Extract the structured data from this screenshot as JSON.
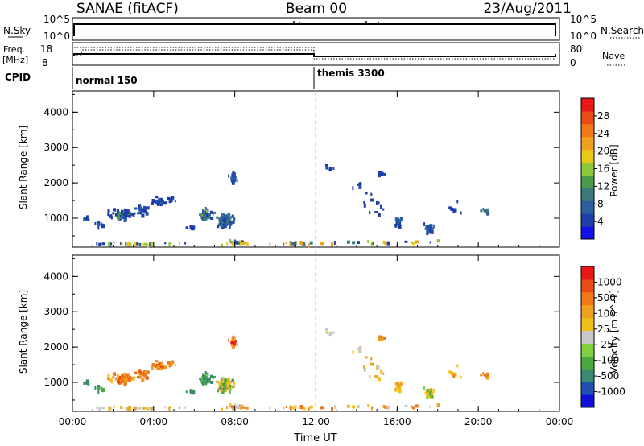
{
  "header": {
    "station": "SANAE (fitACF)",
    "beam": "Beam 00",
    "date": "23/Aug/2011"
  },
  "noise_panel": {
    "left_label": "N.Sky",
    "left_ticks": [
      "10^5",
      "10^0"
    ],
    "right_ticks": [
      "10^5",
      "10^0"
    ],
    "right_label": "N.Search"
  },
  "freq_panel": {
    "left_label_1": "Freq.",
    "left_label_2": "[MHz]",
    "left_ticks": [
      "18",
      "8"
    ],
    "right_ticks": [
      "80",
      "0"
    ],
    "right_label": "Nave"
  },
  "cpid_panel": {
    "label": "CPID",
    "segments": [
      {
        "name": "normal 150",
        "start_hour": 0,
        "end_hour": 12
      },
      {
        "name": "themis 3300",
        "start_hour": 12,
        "end_hour": 24
      }
    ]
  },
  "x_axis": {
    "ticks": [
      "00:00",
      "04:00",
      "08:00",
      "12:00",
      "16:00",
      "20:00",
      "00:00"
    ],
    "label": "Time UT"
  },
  "chart_data": [
    {
      "type": "heatmap",
      "name": "power",
      "ylabel": "Slant Range [km]",
      "xlim_hours": [
        0,
        24
      ],
      "ylim_km": [
        180,
        4600
      ],
      "yticks": [
        "4000",
        "3000",
        "2000",
        "1000"
      ],
      "ytick_values": [
        4000,
        3000,
        2000,
        1000
      ],
      "colorbar": {
        "label": "Power [dB]",
        "range": [
          0,
          32
        ],
        "ticks": [
          "28",
          "24",
          "20",
          "16",
          "12",
          "8",
          "4"
        ],
        "tick_values": [
          28,
          24,
          20,
          16,
          12,
          8,
          4
        ],
        "colors": [
          "#1010e8",
          "#1e3fa8",
          "#2a5fa0",
          "#3a7a78",
          "#4a9a4a",
          "#8cc83a",
          "#e8c818",
          "#f0a020",
          "#f07818",
          "#e84a18",
          "#e81818"
        ]
      },
      "clusters": [
        {
          "t": 0.7,
          "r": 950,
          "dt": 0.25,
          "dr": 120,
          "n": 6,
          "cls": [
            1,
            1,
            2
          ]
        },
        {
          "t": 1.3,
          "r": 820,
          "dt": 0.35,
          "dr": 120,
          "n": 8,
          "cls": [
            1,
            1,
            2
          ]
        },
        {
          "t": 2.4,
          "r": 1100,
          "dt": 0.8,
          "dr": 220,
          "n": 60,
          "cls": [
            1,
            1,
            1,
            2,
            4
          ]
        },
        {
          "t": 3.4,
          "r": 1200,
          "dt": 0.5,
          "dr": 220,
          "n": 25,
          "cls": [
            1,
            1,
            2
          ]
        },
        {
          "t": 4.2,
          "r": 1450,
          "dt": 0.5,
          "dr": 150,
          "n": 30,
          "cls": [
            1,
            1,
            2
          ]
        },
        {
          "t": 4.8,
          "r": 1500,
          "dt": 0.3,
          "dr": 100,
          "n": 8,
          "cls": [
            1,
            1
          ]
        },
        {
          "t": 5.8,
          "r": 700,
          "dt": 0.35,
          "dr": 120,
          "n": 8,
          "cls": [
            1,
            1
          ]
        },
        {
          "t": 6.5,
          "r": 1100,
          "dt": 0.45,
          "dr": 250,
          "n": 40,
          "cls": [
            1,
            2,
            3,
            4,
            5
          ]
        },
        {
          "t": 7.5,
          "r": 900,
          "dt": 0.55,
          "dr": 330,
          "n": 70,
          "cls": [
            1,
            1,
            2,
            3
          ]
        },
        {
          "t": 7.9,
          "r": 2100,
          "dt": 0.3,
          "dr": 200,
          "n": 15,
          "cls": [
            1,
            1,
            2
          ]
        },
        {
          "t": 8.0,
          "r": 280,
          "dt": 0.7,
          "dr": 80,
          "n": 12,
          "cls": [
            1,
            3,
            4,
            5,
            6
          ]
        },
        {
          "t": 12.5,
          "r": 2400,
          "dt": 0.5,
          "dr": 150,
          "n": 5,
          "cls": [
            1,
            1
          ]
        },
        {
          "t": 14.0,
          "r": 1900,
          "dt": 0.5,
          "dr": 300,
          "n": 6,
          "cls": [
            1,
            1
          ]
        },
        {
          "t": 15.2,
          "r": 2250,
          "dt": 0.3,
          "dr": 100,
          "n": 14,
          "cls": [
            1,
            1
          ]
        },
        {
          "t": 14.8,
          "r": 1400,
          "dt": 0.8,
          "dr": 450,
          "n": 12,
          "cls": [
            1,
            1
          ]
        },
        {
          "t": 16.0,
          "r": 850,
          "dt": 0.5,
          "dr": 300,
          "n": 12,
          "cls": [
            1,
            1,
            2
          ]
        },
        {
          "t": 17.5,
          "r": 720,
          "dt": 0.35,
          "dr": 220,
          "n": 30,
          "cls": [
            1,
            1,
            2
          ]
        },
        {
          "t": 18.8,
          "r": 1200,
          "dt": 0.6,
          "dr": 300,
          "n": 8,
          "cls": [
            1,
            1
          ]
        },
        {
          "t": 20.3,
          "r": 1150,
          "dt": 0.35,
          "dr": 120,
          "n": 8,
          "cls": [
            1,
            2,
            3
          ]
        },
        {
          "t": 12.0,
          "r": 280,
          "dt": 11.5,
          "dr": 80,
          "n": 40,
          "cls": [
            1,
            3,
            5,
            6,
            7
          ]
        },
        {
          "t": 3.0,
          "r": 250,
          "dt": 2.8,
          "dr": 50,
          "n": 30,
          "cls": [
            1,
            2,
            5,
            6
          ]
        }
      ]
    },
    {
      "type": "heatmap",
      "name": "velocity",
      "ylabel": "Slant Range [km]",
      "xlim_hours": [
        0,
        24
      ],
      "ylim_km": [
        180,
        4600
      ],
      "yticks": [
        "4000",
        "3000",
        "2000",
        "1000"
      ],
      "ytick_values": [
        4000,
        3000,
        2000,
        1000
      ],
      "colorbar": {
        "label": "Velocity [m s^-1]",
        "ticks": [
          "1000",
          "500",
          "100",
          "25",
          "-25",
          "-100",
          "-500",
          "-1000"
        ],
        "colors": [
          "#1010d8",
          "#2050b0",
          "#3a8a70",
          "#4aaa40",
          "#80d040",
          "#c8c8c8",
          "#f0c018",
          "#f0a020",
          "#f07818",
          "#e84a18",
          "#e81818"
        ]
      },
      "clusters": [
        {
          "t": 0.7,
          "r": 950,
          "dt": 0.25,
          "dr": 120,
          "n": 6,
          "cls": [
            2,
            3
          ]
        },
        {
          "t": 1.3,
          "r": 820,
          "dt": 0.35,
          "dr": 120,
          "n": 8,
          "cls": [
            2,
            3
          ]
        },
        {
          "t": 2.4,
          "r": 1100,
          "dt": 0.8,
          "dr": 220,
          "n": 60,
          "cls": [
            6,
            7,
            8,
            8,
            9
          ]
        },
        {
          "t": 3.4,
          "r": 1200,
          "dt": 0.5,
          "dr": 220,
          "n": 25,
          "cls": [
            7,
            8,
            8,
            9
          ]
        },
        {
          "t": 4.2,
          "r": 1450,
          "dt": 0.5,
          "dr": 150,
          "n": 30,
          "cls": [
            7,
            8,
            8,
            9
          ]
        },
        {
          "t": 4.8,
          "r": 1500,
          "dt": 0.3,
          "dr": 100,
          "n": 8,
          "cls": [
            7,
            8
          ]
        },
        {
          "t": 5.8,
          "r": 700,
          "dt": 0.35,
          "dr": 120,
          "n": 8,
          "cls": [
            2,
            3
          ]
        },
        {
          "t": 6.5,
          "r": 1100,
          "dt": 0.45,
          "dr": 250,
          "n": 40,
          "cls": [
            2,
            2,
            3,
            4
          ]
        },
        {
          "t": 7.5,
          "r": 900,
          "dt": 0.55,
          "dr": 330,
          "n": 70,
          "cls": [
            2,
            3,
            3,
            6,
            7
          ]
        },
        {
          "t": 7.9,
          "r": 2100,
          "dt": 0.3,
          "dr": 200,
          "n": 15,
          "cls": [
            7,
            8,
            10
          ]
        },
        {
          "t": 8.0,
          "r": 280,
          "dt": 0.7,
          "dr": 80,
          "n": 12,
          "cls": [
            5,
            6,
            7
          ]
        },
        {
          "t": 12.5,
          "r": 2400,
          "dt": 0.5,
          "dr": 150,
          "n": 5,
          "cls": [
            5,
            6
          ]
        },
        {
          "t": 14.0,
          "r": 1900,
          "dt": 0.5,
          "dr": 300,
          "n": 6,
          "cls": [
            5,
            6
          ]
        },
        {
          "t": 15.2,
          "r": 2250,
          "dt": 0.3,
          "dr": 100,
          "n": 14,
          "cls": [
            7,
            8,
            8
          ]
        },
        {
          "t": 14.8,
          "r": 1400,
          "dt": 0.8,
          "dr": 450,
          "n": 12,
          "cls": [
            5,
            6,
            7
          ]
        },
        {
          "t": 16.0,
          "r": 850,
          "dt": 0.5,
          "dr": 300,
          "n": 12,
          "cls": [
            6,
            7
          ]
        },
        {
          "t": 17.5,
          "r": 720,
          "dt": 0.35,
          "dr": 220,
          "n": 30,
          "cls": [
            3,
            4,
            4,
            6
          ]
        },
        {
          "t": 18.8,
          "r": 1200,
          "dt": 0.6,
          "dr": 300,
          "n": 8,
          "cls": [
            6,
            7,
            8
          ]
        },
        {
          "t": 20.3,
          "r": 1150,
          "dt": 0.35,
          "dr": 120,
          "n": 8,
          "cls": [
            7,
            8
          ]
        },
        {
          "t": 12.0,
          "r": 280,
          "dt": 11.5,
          "dr": 80,
          "n": 40,
          "cls": [
            5,
            6,
            7,
            8
          ]
        },
        {
          "t": 3.0,
          "r": 250,
          "dt": 2.8,
          "dr": 50,
          "n": 30,
          "cls": [
            5,
            6,
            7
          ]
        }
      ]
    }
  ]
}
